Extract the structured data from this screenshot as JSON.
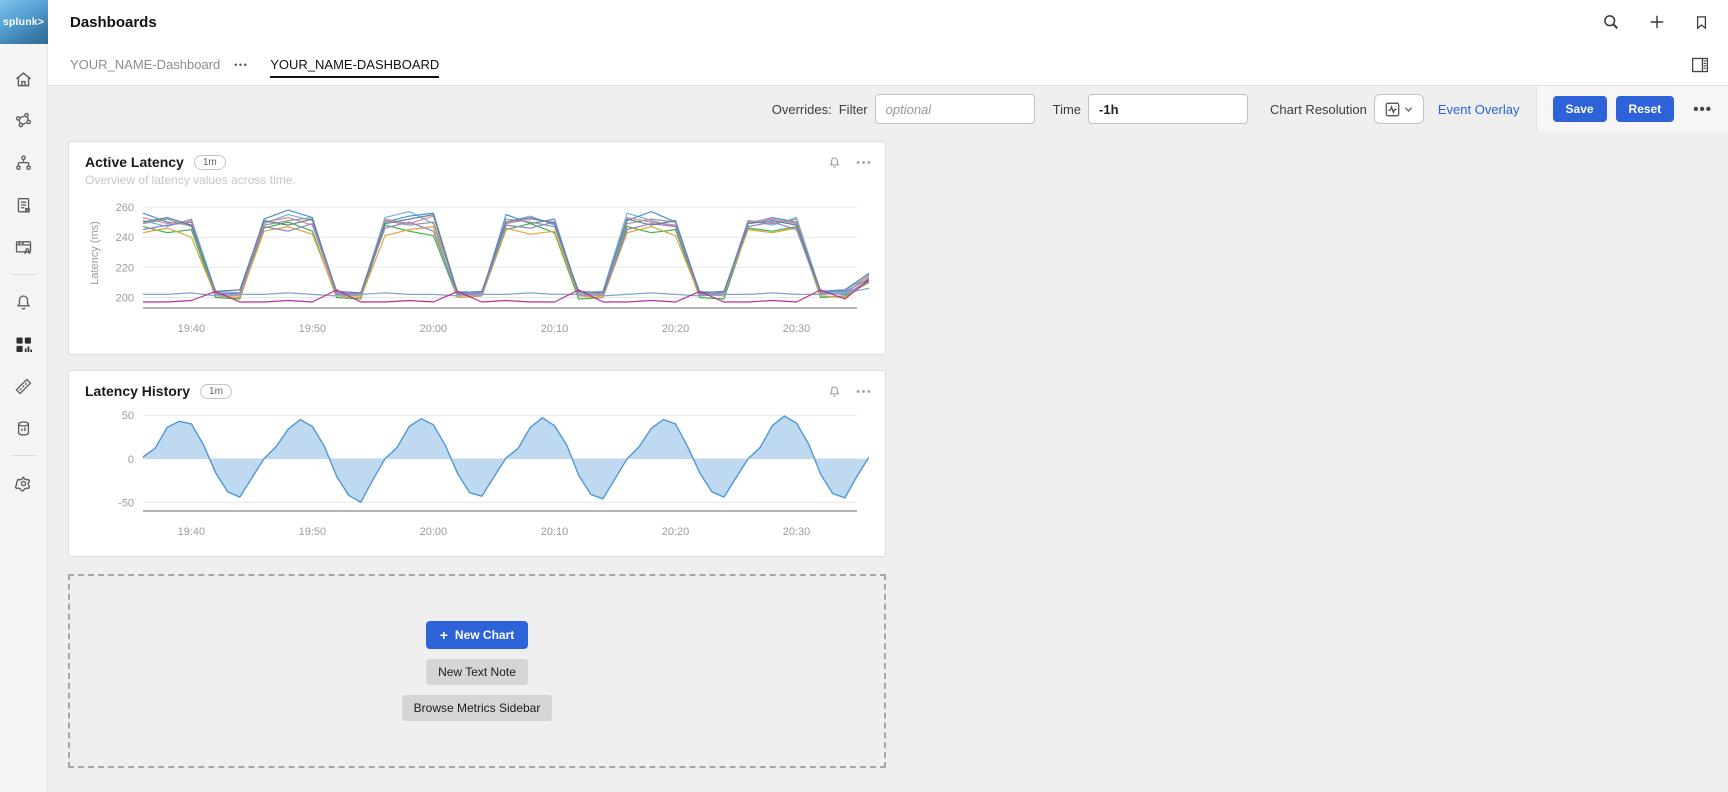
{
  "app": {
    "logo_text": "splunk>",
    "page_title": "Dashboards"
  },
  "colors": {
    "accent_blue": "#2d62d9",
    "link_blue": "#2662d9",
    "area_fill": "#aed3ec",
    "area_line": "#4f97d6"
  },
  "header": {
    "icons": [
      "search-icon",
      "plus-icon",
      "bookmark-icon"
    ]
  },
  "sidebar": {
    "items": [
      {
        "icon": "home-icon",
        "active": false
      },
      {
        "icon": "apm-network-icon",
        "active": false
      },
      {
        "icon": "infrastructure-icon",
        "active": false
      },
      {
        "icon": "log-observer-icon",
        "active": false
      },
      {
        "icon": "rum-icon",
        "active": false
      },
      {
        "icon": "alerts-bell-icon",
        "active": false
      },
      {
        "icon": "dashboards-grid-icon",
        "active": true
      },
      {
        "icon": "metrics-ruler-icon",
        "active": false
      },
      {
        "icon": "data-management-icon",
        "active": false
      },
      {
        "icon": "settings-gear-icon",
        "active": false
      }
    ]
  },
  "tabs": {
    "group_label": "YOUR_NAME-Dashboard",
    "group_menu": "•••",
    "active_tab": "YOUR_NAME-DASHBOARD"
  },
  "toolbar": {
    "overrides_label": "Overrides:",
    "filter_label": "Filter",
    "filter_placeholder": "optional",
    "time_label": "Time",
    "time_value": "-1h",
    "chart_resolution_label": "Chart Resolution",
    "event_overlay_label": "Event Overlay",
    "save_label": "Save",
    "reset_label": "Reset",
    "more_label": "•••"
  },
  "empty_panel": {
    "new_chart_label": "New Chart",
    "new_chart_plus": "+",
    "new_text_note_label": "New Text Note",
    "browse_metrics_label": "Browse Metrics Sidebar"
  },
  "chart_data": [
    {
      "type": "line",
      "title": "Active Latency",
      "badge": "1m",
      "subtitle": "Overview of latency values across time.",
      "ylabel": "Latency (ms)",
      "ylim": [
        193,
        266
      ],
      "y_ticks": [
        200,
        220,
        240,
        260
      ],
      "x_start_label": "19:36",
      "x_step_minutes": 2,
      "x_range_minutes": [
        0,
        59
      ],
      "x_tick_offsets_min": [
        4,
        14,
        24,
        34,
        44,
        54
      ],
      "x_tick_labels": [
        "19:40",
        "19:50",
        "20:00",
        "20:10",
        "20:20",
        "20:30"
      ],
      "grid": true,
      "legend": "none",
      "series": [
        {
          "id": "series-1",
          "color": "#6fb3e2",
          "values": [
            251,
            247,
            252,
            204,
            203,
            249,
            255,
            251,
            203,
            202,
            253,
            257,
            249,
            204,
            203,
            250,
            254,
            248,
            203,
            204,
            256,
            251,
            247,
            204,
            203,
            251,
            248,
            253,
            204,
            205,
            214
          ]
        },
        {
          "id": "series-2",
          "color": "#4a90d9",
          "values": [
            256,
            250,
            248,
            202,
            203,
            252,
            258,
            253,
            202,
            203,
            250,
            254,
            256,
            203,
            202,
            255,
            249,
            252,
            202,
            203,
            251,
            257,
            250,
            203,
            202,
            249,
            253,
            250,
            203,
            204,
            212
          ]
        },
        {
          "id": "series-3",
          "color": "#3cb34a",
          "values": [
            247,
            243,
            245,
            200,
            199,
            246,
            250,
            244,
            200,
            199,
            248,
            244,
            241,
            200,
            201,
            245,
            249,
            243,
            199,
            200,
            247,
            243,
            245,
            200,
            199,
            246,
            244,
            247,
            200,
            201,
            210
          ]
        },
        {
          "id": "series-4",
          "color": "#e2a33c",
          "values": [
            243,
            246,
            240,
            201,
            200,
            244,
            247,
            242,
            201,
            200,
            241,
            245,
            247,
            200,
            201,
            246,
            242,
            244,
            201,
            200,
            243,
            247,
            241,
            201,
            202,
            245,
            243,
            246,
            201,
            200,
            211
          ]
        },
        {
          "id": "series-5",
          "color": "#d9878f",
          "values": [
            253,
            249,
            251,
            202,
            201,
            250,
            253,
            248,
            202,
            201,
            252,
            249,
            254,
            202,
            201,
            249,
            252,
            250,
            201,
            202,
            253,
            250,
            248,
            202,
            201,
            250,
            252,
            249,
            202,
            203,
            213
          ]
        },
        {
          "id": "series-6",
          "color": "#9a9a9a",
          "values": [
            249,
            252,
            247,
            203,
            202,
            248,
            251,
            253,
            202,
            203,
            251,
            248,
            250,
            203,
            202,
            252,
            250,
            247,
            202,
            203,
            249,
            252,
            250,
            203,
            202,
            251,
            249,
            252,
            203,
            202,
            215
          ]
        },
        {
          "id": "series-7",
          "color": "#9183c9",
          "values": [
            245,
            248,
            250,
            202,
            203,
            247,
            244,
            249,
            203,
            202,
            246,
            250,
            244,
            202,
            203,
            248,
            246,
            250,
            202,
            201,
            245,
            249,
            247,
            202,
            203,
            247,
            250,
            245,
            203,
            202,
            211
          ]
        },
        {
          "id": "series-8",
          "color": "#5f84a2",
          "values": [
            250,
            253,
            248,
            204,
            205,
            251,
            248,
            252,
            204,
            203,
            249,
            252,
            255,
            203,
            204,
            250,
            253,
            249,
            204,
            203,
            252,
            248,
            251,
            203,
            204,
            249,
            251,
            248,
            204,
            205,
            216
          ]
        },
        {
          "id": "series-9",
          "color": "#7fa8c9",
          "values": [
            202,
            202,
            203,
            201,
            202,
            202,
            203,
            202,
            201,
            202,
            203,
            202,
            202,
            201,
            202,
            202,
            203,
            202,
            202,
            201,
            202,
            203,
            202,
            201,
            202,
            202,
            203,
            202,
            202,
            203,
            206
          ]
        },
        {
          "id": "series-10",
          "color": "#bf2e8e",
          "values": [
            197,
            197,
            198,
            204,
            197,
            197,
            198,
            197,
            205,
            197,
            197,
            198,
            197,
            204,
            197,
            198,
            197,
            197,
            205,
            197,
            197,
            198,
            197,
            204,
            197,
            197,
            198,
            197,
            205,
            199,
            212
          ]
        }
      ]
    },
    {
      "type": "area",
      "title": "Latency History",
      "badge": "1m",
      "ylabel": "",
      "ylim": [
        -60,
        56
      ],
      "y_ticks": [
        50,
        0,
        -50
      ],
      "x_start_label": "19:36",
      "x_step_minutes": 1,
      "x_range_minutes": [
        0,
        59
      ],
      "x_tick_offsets_min": [
        4,
        14,
        24,
        34,
        44,
        54
      ],
      "x_tick_labels": [
        "19:40",
        "19:50",
        "20:00",
        "20:10",
        "20:20",
        "20:30"
      ],
      "grid": true,
      "legend": "none",
      "line_color": "#4f97d6",
      "fill_color": "rgba(138,188,228,0.55)",
      "values": [
        2,
        12,
        36,
        43,
        40,
        16,
        -16,
        -38,
        -44,
        -22,
        0,
        14,
        34,
        45,
        37,
        14,
        -20,
        -42,
        -50,
        -24,
        0,
        13,
        37,
        46,
        39,
        15,
        -17,
        -39,
        -43,
        -21,
        1,
        12,
        36,
        47,
        38,
        16,
        -19,
        -41,
        -46,
        -23,
        0,
        14,
        35,
        45,
        40,
        14,
        -16,
        -38,
        -44,
        -22,
        0,
        13,
        38,
        49,
        41,
        17,
        -18,
        -40,
        -45,
        -20,
        2
      ]
    }
  ]
}
